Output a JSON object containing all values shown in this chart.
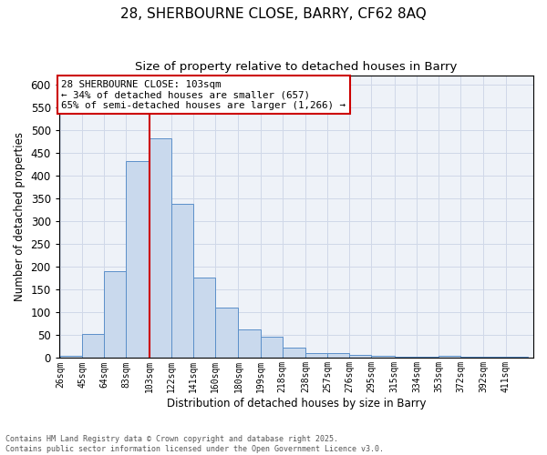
{
  "title1": "28, SHERBOURNE CLOSE, BARRY, CF62 8AQ",
  "title2": "Size of property relative to detached houses in Barry",
  "xlabel": "Distribution of detached houses by size in Barry",
  "ylabel": "Number of detached properties",
  "bar_color": "#c9d9ed",
  "bar_edge_color": "#5b8fc9",
  "bin_labels": [
    "26sqm",
    "45sqm",
    "64sqm",
    "83sqm",
    "103sqm",
    "122sqm",
    "141sqm",
    "160sqm",
    "180sqm",
    "199sqm",
    "218sqm",
    "238sqm",
    "257sqm",
    "276sqm",
    "295sqm",
    "315sqm",
    "334sqm",
    "353sqm",
    "372sqm",
    "392sqm",
    "411sqm"
  ],
  "bin_values": [
    5,
    52,
    190,
    432,
    483,
    338,
    176,
    110,
    62,
    47,
    22,
    10,
    10,
    6,
    5,
    3,
    2,
    5,
    3,
    2,
    3
  ],
  "bin_edges": [
    26,
    45,
    64,
    83,
    103,
    122,
    141,
    160,
    180,
    199,
    218,
    238,
    257,
    276,
    295,
    315,
    334,
    353,
    372,
    392,
    411,
    430
  ],
  "red_line_x": 103,
  "annotation_title": "28 SHERBOURNE CLOSE: 103sqm",
  "annotation_line1": "← 34% of detached houses are smaller (657)",
  "annotation_line2": "65% of semi-detached houses are larger (1,266) →",
  "annotation_box_color": "#ffffff",
  "annotation_edge_color": "#cc0000",
  "ylim": [
    0,
    620
  ],
  "yticks": [
    0,
    50,
    100,
    150,
    200,
    250,
    300,
    350,
    400,
    450,
    500,
    550,
    600
  ],
  "grid_color": "#d0d8e8",
  "background_color": "#eef2f8",
  "footer_line1": "Contains HM Land Registry data © Crown copyright and database right 2025.",
  "footer_line2": "Contains public sector information licensed under the Open Government Licence v3.0."
}
